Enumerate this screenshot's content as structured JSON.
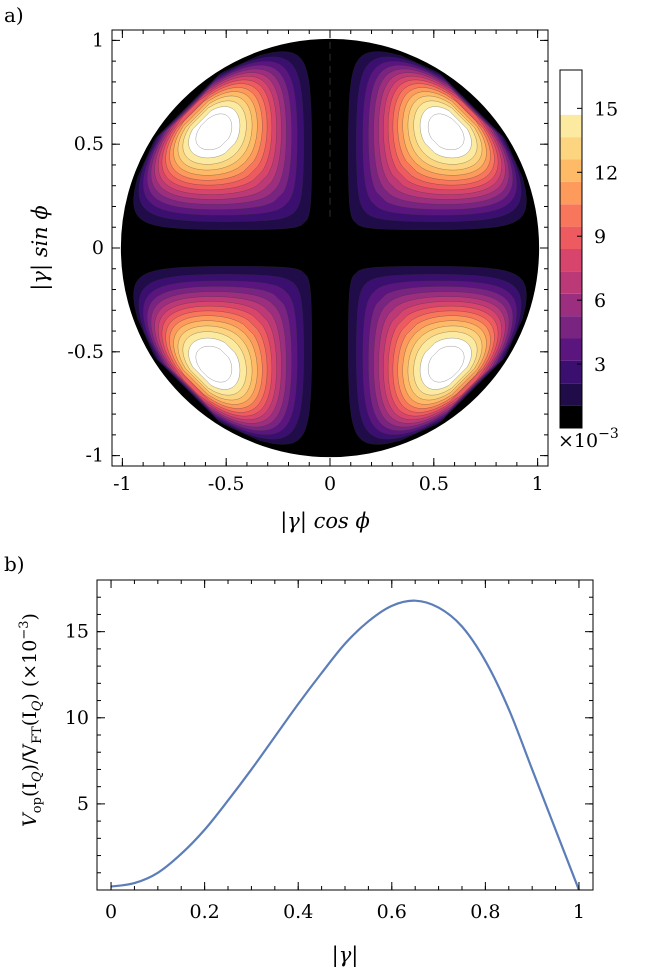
{
  "chart_data": [
    {
      "panel": "a)",
      "type": "heatmap",
      "xlabel": "|γ| cos ϕ",
      "ylabel": "|γ| sin ϕ",
      "xlim": [
        -1.05,
        1.05
      ],
      "ylim": [
        -1.05,
        1.05
      ],
      "xticks": [
        -1,
        -0.5,
        0,
        0.5,
        1
      ],
      "xtick_labels": [
        "-1",
        "-0.5",
        "0",
        "0.5",
        "1"
      ],
      "yticks": [
        -1,
        -0.5,
        0,
        0.5,
        1
      ],
      "ytick_labels": [
        "-1",
        "-0.5",
        "0",
        "0.5",
        "1"
      ],
      "colorbar": {
        "ticks": [
          3,
          6,
          9,
          12,
          15
        ],
        "tick_labels": [
          "3",
          "6",
          "9",
          "12",
          "15"
        ],
        "range": [
          0,
          16.8
        ],
        "scale_label": "×10",
        "scale_exponent": "−3",
        "levels": [
          1.05,
          2.1,
          3.15,
          4.2,
          5.25,
          6.3,
          7.35,
          8.4,
          9.45,
          10.5,
          11.55,
          12.6,
          13.65,
          14.7,
          15.75
        ],
        "colors": [
          "#000000",
          "#1f0c48",
          "#3b0f6f",
          "#5a167e",
          "#7a2482",
          "#9b2e7e",
          "#bc3978",
          "#d8456c",
          "#ed5a5f",
          "#f8765c",
          "#fd9a5c",
          "#feba66",
          "#fdd581",
          "#fbea9f",
          "#ffffff"
        ]
      },
      "annotations": [
        "dashed vertical line at x = 0 from y ≈ 0.15 to y = 1"
      ]
    },
    {
      "panel": "b)",
      "type": "line",
      "xlabel": "|γ|",
      "ylabel_main": "V",
      "ylabel_sub1": "op",
      "ylabel_mid": "(I",
      "ylabel_sub2": "Q",
      "ylabel_mid2": ")/V",
      "ylabel_sub3": "FT",
      "ylabel_mid3": "(I",
      "ylabel_sub4": "Q",
      "ylabel_end": ") (×10",
      "ylabel_exp": "−3",
      "ylabel_close": ")",
      "xlim": [
        -0.03,
        1.03
      ],
      "ylim": [
        0,
        18
      ],
      "xticks": [
        0,
        0.2,
        0.4,
        0.6,
        0.8,
        1
      ],
      "xtick_labels": [
        "0",
        "0.2",
        "0.4",
        "0.6",
        "0.8",
        "1"
      ],
      "yticks": [
        5,
        10,
        15
      ],
      "ytick_labels": [
        "5",
        "10",
        "15"
      ],
      "series": [
        {
          "color": "#5b7db8",
          "x": [
            0,
            0.05,
            0.1,
            0.15,
            0.2,
            0.25,
            0.3,
            0.35,
            0.4,
            0.45,
            0.5,
            0.55,
            0.6,
            0.65,
            0.7,
            0.75,
            0.8,
            0.85,
            0.9,
            0.95,
            1.0
          ],
          "values": [
            0.2,
            0.4,
            1.0,
            2.1,
            3.5,
            5.2,
            7.0,
            8.9,
            10.8,
            12.6,
            14.3,
            15.6,
            16.5,
            16.8,
            16.4,
            15.3,
            13.3,
            10.5,
            7.0,
            3.5,
            0
          ]
        }
      ]
    }
  ]
}
